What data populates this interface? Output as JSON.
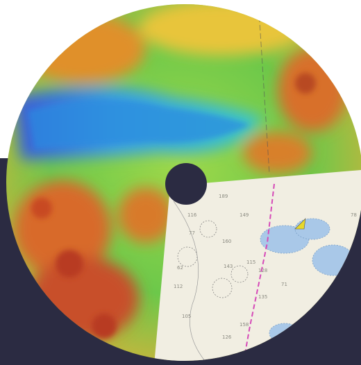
{
  "soundings": [
    "189",
    "149",
    "116",
    "77",
    "160",
    "115",
    "143",
    "128",
    "105",
    "112",
    "126",
    "135",
    "158",
    "71",
    "78",
    "62"
  ]
}
